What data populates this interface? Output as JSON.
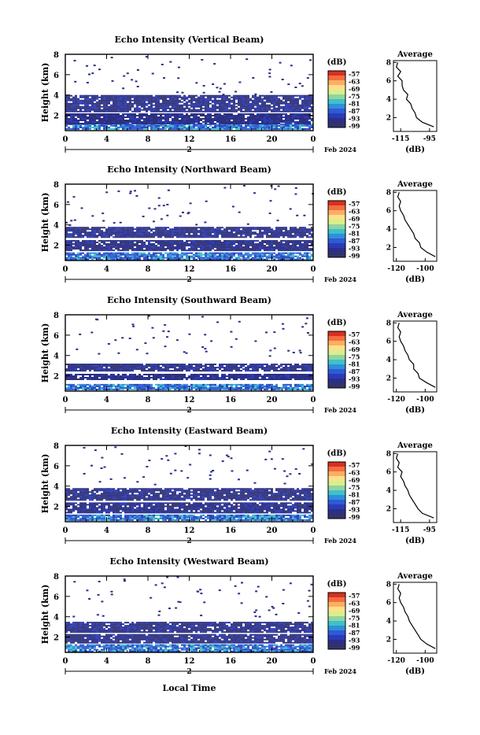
{
  "figure": {
    "xlabel": "Local Time",
    "date_label": "2",
    "month_label": "Feb 2024",
    "colorbar_unit": "(dB)",
    "colorbar_ticks": [
      "-57",
      "-63",
      "-69",
      "-75",
      "-81",
      "-87",
      "-93",
      "-99"
    ],
    "colorbar_colors": [
      "#d7301f",
      "#f46d43",
      "#fdae61",
      "#fee08b",
      "#d9ef8b",
      "#91d4a0",
      "#3fc1c9",
      "#2f8fd8",
      "#2d5bd6",
      "#2a3bb8",
      "#2b2f86",
      "#33336b"
    ],
    "main_ylabel": "Height (km)",
    "main_yticks": [
      "2",
      "4",
      "6",
      "8"
    ],
    "main_xticks": [
      "0",
      "4",
      "8",
      "12",
      "16",
      "20",
      "0"
    ],
    "avg_title": "Average",
    "avg_yticks": [
      "2",
      "4",
      "6",
      "8"
    ],
    "avg_xlabel": "(dB)"
  },
  "chart_data": [
    {
      "type": "heatmap",
      "title": "Echo Intensity (Vertical Beam)",
      "xlim": [
        0,
        24
      ],
      "ylim": [
        0.5,
        8
      ],
      "layers": [
        {
          "t_range": [
            0,
            24
          ],
          "h_range": [
            0.6,
            1.2
          ],
          "level": "strong"
        },
        {
          "t_range": [
            0,
            24
          ],
          "h_range": [
            1.2,
            2.2
          ],
          "level": "weak"
        },
        {
          "t_range": [
            0,
            24
          ],
          "h_range": [
            2.4,
            4.0
          ],
          "level": "weak"
        }
      ],
      "average": {
        "xticks": [
          "-115",
          "-95"
        ],
        "xlim": [
          -120,
          -90
        ],
        "profile": [
          [
            1.0,
            -92
          ],
          [
            1.5,
            -100
          ],
          [
            2.0,
            -104
          ],
          [
            2.5,
            -105
          ],
          [
            3.0,
            -107
          ],
          [
            3.5,
            -108
          ],
          [
            4.0,
            -111
          ],
          [
            4.5,
            -110
          ],
          [
            5.0,
            -113
          ],
          [
            5.5,
            -114
          ],
          [
            6.0,
            -114
          ],
          [
            6.5,
            -117
          ],
          [
            7.0,
            -115
          ],
          [
            7.5,
            -118
          ],
          [
            8.0,
            -117
          ]
        ]
      }
    },
    {
      "type": "heatmap",
      "title": "Echo Intensity (Northward Beam)",
      "xlim": [
        0,
        24
      ],
      "ylim": [
        0.5,
        8
      ],
      "layers": [
        {
          "t_range": [
            0,
            24
          ],
          "h_range": [
            0.6,
            1.3
          ],
          "level": "strong"
        },
        {
          "t_range": [
            0,
            24
          ],
          "h_range": [
            1.5,
            2.5
          ],
          "level": "weak"
        },
        {
          "t_range": [
            0,
            24
          ],
          "h_range": [
            2.8,
            3.8
          ],
          "level": "weak"
        }
      ],
      "average": {
        "xticks": [
          "-120",
          "-100"
        ],
        "xlim": [
          -122,
          -92
        ],
        "profile": [
          [
            1.0,
            -93
          ],
          [
            1.5,
            -99
          ],
          [
            2.0,
            -103
          ],
          [
            2.5,
            -104
          ],
          [
            3.0,
            -107
          ],
          [
            3.5,
            -108
          ],
          [
            4.0,
            -110
          ],
          [
            4.5,
            -112
          ],
          [
            5.0,
            -114
          ],
          [
            5.5,
            -115
          ],
          [
            6.0,
            -117
          ],
          [
            6.5,
            -118
          ],
          [
            7.0,
            -117
          ],
          [
            7.5,
            -119
          ],
          [
            8.0,
            -118
          ]
        ]
      }
    },
    {
      "type": "heatmap",
      "title": "Echo Intensity (Southward Beam)",
      "xlim": [
        0,
        24
      ],
      "ylim": [
        0.5,
        8
      ],
      "layers": [
        {
          "t_range": [
            0,
            24
          ],
          "h_range": [
            0.6,
            1.2
          ],
          "level": "strong"
        },
        {
          "t_range": [
            0,
            24
          ],
          "h_range": [
            1.6,
            2.2
          ],
          "level": "weak"
        },
        {
          "t_range": [
            0,
            24
          ],
          "h_range": [
            2.5,
            3.2
          ],
          "level": "weak"
        }
      ],
      "average": {
        "xticks": [
          "-120",
          "-100"
        ],
        "xlim": [
          -122,
          -92
        ],
        "profile": [
          [
            1.0,
            -93
          ],
          [
            1.5,
            -99
          ],
          [
            2.0,
            -104
          ],
          [
            2.5,
            -105
          ],
          [
            3.0,
            -108
          ],
          [
            3.5,
            -108
          ],
          [
            4.0,
            -111
          ],
          [
            4.5,
            -112
          ],
          [
            5.0,
            -114
          ],
          [
            5.5,
            -115
          ],
          [
            6.0,
            -117
          ],
          [
            6.5,
            -118
          ],
          [
            7.0,
            -117
          ],
          [
            7.5,
            -119
          ],
          [
            8.0,
            -118
          ]
        ]
      }
    },
    {
      "type": "heatmap",
      "title": "Echo Intensity (Eastward Beam)",
      "xlim": [
        0,
        24
      ],
      "ylim": [
        0.5,
        8
      ],
      "layers": [
        {
          "t_range": [
            0,
            24
          ],
          "h_range": [
            0.6,
            1.2
          ],
          "level": "strong"
        },
        {
          "t_range": [
            0,
            24
          ],
          "h_range": [
            1.4,
            2.4
          ],
          "level": "weak"
        },
        {
          "t_range": [
            0,
            24
          ],
          "h_range": [
            2.6,
            3.8
          ],
          "level": "weak"
        }
      ],
      "average": {
        "xticks": [
          "-115",
          "-95"
        ],
        "xlim": [
          -120,
          -90
        ],
        "profile": [
          [
            1.0,
            -92
          ],
          [
            1.5,
            -100
          ],
          [
            2.0,
            -103
          ],
          [
            2.5,
            -105
          ],
          [
            3.0,
            -107
          ],
          [
            3.5,
            -109
          ],
          [
            4.0,
            -110
          ],
          [
            4.5,
            -112
          ],
          [
            5.0,
            -113
          ],
          [
            5.5,
            -115
          ],
          [
            6.0,
            -114
          ],
          [
            6.5,
            -117
          ],
          [
            7.0,
            -116
          ],
          [
            7.5,
            -118
          ],
          [
            8.0,
            -117
          ]
        ]
      }
    },
    {
      "type": "heatmap",
      "title": "Echo Intensity (Westward Beam)",
      "xlim": [
        0,
        24
      ],
      "ylim": [
        0.5,
        8
      ],
      "layers": [
        {
          "t_range": [
            0,
            24
          ],
          "h_range": [
            0.6,
            1.3
          ],
          "level": "strong"
        },
        {
          "t_range": [
            0,
            24
          ],
          "h_range": [
            1.5,
            2.3
          ],
          "level": "weak"
        },
        {
          "t_range": [
            0,
            24
          ],
          "h_range": [
            2.5,
            3.5
          ],
          "level": "weak"
        }
      ],
      "average": {
        "xticks": [
          "-120",
          "-100"
        ],
        "xlim": [
          -122,
          -92
        ],
        "profile": [
          [
            1.0,
            -93
          ],
          [
            1.5,
            -99
          ],
          [
            2.0,
            -103
          ],
          [
            2.5,
            -105
          ],
          [
            3.0,
            -107
          ],
          [
            3.5,
            -109
          ],
          [
            4.0,
            -111
          ],
          [
            4.5,
            -112
          ],
          [
            5.0,
            -114
          ],
          [
            5.5,
            -115
          ],
          [
            6.0,
            -117
          ],
          [
            6.5,
            -118
          ],
          [
            7.0,
            -117
          ],
          [
            7.5,
            -119
          ],
          [
            8.0,
            -118
          ]
        ]
      }
    }
  ]
}
